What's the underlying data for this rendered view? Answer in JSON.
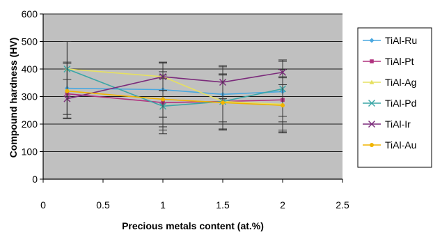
{
  "chart_data": {
    "type": "line",
    "title": "",
    "xlabel": "Precious metals content (at.%)",
    "ylabel": "Compound hardness (HV)",
    "xlim": [
      0,
      2.5
    ],
    "ylim": [
      0,
      600
    ],
    "xticks": [
      "0",
      "0.5",
      "1",
      "1.5",
      "2",
      "2.5"
    ],
    "yticks": [
      "0",
      "100",
      "200",
      "300",
      "400",
      "500",
      "600"
    ],
    "xtick_values": [
      0,
      0.5,
      1,
      1.5,
      2,
      2.5
    ],
    "ytick_values": [
      0,
      100,
      200,
      300,
      400,
      500,
      600
    ],
    "grid": "horizontal",
    "plot_background": "#c0c0c0",
    "legend_position": "right",
    "series": [
      {
        "name": "TiAl-Ru",
        "color": "#4aa8e0",
        "marker": "diamond",
        "x": [
          0.2,
          1,
          1.5,
          2
        ],
        "y": [
          330,
          325,
          308,
          318
        ],
        "error": [
          95,
          100,
          100,
          110
        ]
      },
      {
        "name": "TiAl-Pt",
        "color": "#b0327f",
        "marker": "square",
        "x": [
          0.2,
          1,
          1.5,
          2
        ],
        "y": [
          310,
          278,
          282,
          288
        ],
        "error": [
          90,
          100,
          100,
          110
        ]
      },
      {
        "name": "TiAl-Ag",
        "color": "#e6e060",
        "marker": "triangle",
        "x": [
          0.2,
          1,
          1.5,
          2
        ],
        "y": [
          400,
          372,
          282,
          272
        ],
        "error": [
          100,
          50,
          100,
          100
        ]
      },
      {
        "name": "TiAl-Pd",
        "color": "#3aa6a6",
        "marker": "x",
        "x": [
          0.2,
          1,
          1.5,
          2
        ],
        "y": [
          400,
          265,
          282,
          328
        ],
        "error": [
          100,
          100,
          100,
          100
        ]
      },
      {
        "name": "TiAl-Ir",
        "color": "#7b2b7b",
        "marker": "x",
        "x": [
          0.2,
          1,
          1.5,
          2
        ],
        "y": [
          292,
          372,
          352,
          388
        ],
        "error": [
          70,
          50,
          60,
          45
        ]
      },
      {
        "name": "TiAl-Au",
        "color": "#f0b400",
        "marker": "circle",
        "x": [
          0.2,
          1,
          1.5,
          2
        ],
        "y": [
          320,
          290,
          278,
          268
        ],
        "error": [
          100,
          100,
          100,
          100
        ]
      }
    ]
  }
}
